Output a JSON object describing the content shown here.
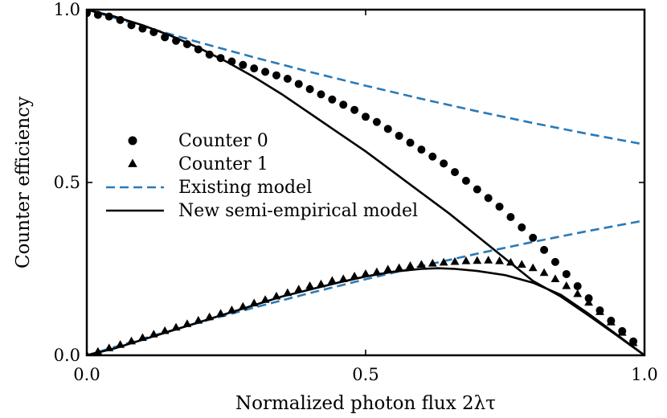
{
  "chart_data": {
    "type": "line",
    "xlabel": "Normalized photon flux 2λτ",
    "ylabel": "Counter efficiency",
    "xlim": [
      0.0,
      1.0
    ],
    "ylim": [
      0.0,
      1.0
    ],
    "xticks": [
      0.0,
      0.5,
      1.0
    ],
    "xtick_labels": [
      "0.0",
      "0.5",
      "1.0"
    ],
    "yticks": [
      0.0,
      0.5,
      1.0
    ],
    "ytick_labels": [
      "0.0",
      "0.5",
      "1.0"
    ],
    "grid": false,
    "legend_position": "center-left",
    "series": [
      {
        "name": "Counter 0",
        "kind": "scatter",
        "marker": "circle",
        "color": "#000000",
        "x": [
          0.0,
          0.02,
          0.04,
          0.06,
          0.08,
          0.1,
          0.12,
          0.14,
          0.16,
          0.18,
          0.2,
          0.22,
          0.24,
          0.26,
          0.28,
          0.3,
          0.32,
          0.34,
          0.36,
          0.38,
          0.4,
          0.42,
          0.44,
          0.46,
          0.48,
          0.5,
          0.52,
          0.54,
          0.56,
          0.58,
          0.6,
          0.62,
          0.64,
          0.66,
          0.68,
          0.7,
          0.72,
          0.74,
          0.76,
          0.78,
          0.8,
          0.82,
          0.84,
          0.86,
          0.88,
          0.9,
          0.92,
          0.94,
          0.96,
          0.98
        ],
        "y": [
          0.99,
          0.985,
          0.98,
          0.97,
          0.955,
          0.945,
          0.935,
          0.92,
          0.91,
          0.9,
          0.885,
          0.87,
          0.86,
          0.85,
          0.84,
          0.83,
          0.82,
          0.81,
          0.8,
          0.785,
          0.77,
          0.755,
          0.74,
          0.725,
          0.71,
          0.69,
          0.675,
          0.655,
          0.635,
          0.615,
          0.595,
          0.575,
          0.555,
          0.53,
          0.505,
          0.48,
          0.455,
          0.43,
          0.4,
          0.37,
          0.34,
          0.305,
          0.27,
          0.235,
          0.2,
          0.165,
          0.13,
          0.1,
          0.07,
          0.04
        ]
      },
      {
        "name": "Counter 1",
        "kind": "scatter",
        "marker": "triangle",
        "color": "#000000",
        "x": [
          0.0,
          0.02,
          0.04,
          0.06,
          0.08,
          0.1,
          0.12,
          0.14,
          0.16,
          0.18,
          0.2,
          0.22,
          0.24,
          0.26,
          0.28,
          0.3,
          0.32,
          0.34,
          0.36,
          0.38,
          0.4,
          0.42,
          0.44,
          0.46,
          0.48,
          0.5,
          0.52,
          0.54,
          0.56,
          0.58,
          0.6,
          0.62,
          0.64,
          0.66,
          0.68,
          0.7,
          0.72,
          0.74,
          0.76,
          0.78,
          0.8,
          0.82,
          0.84,
          0.86,
          0.88,
          0.9,
          0.92,
          0.94,
          0.96,
          0.98
        ],
        "y": [
          0.0,
          0.01,
          0.02,
          0.03,
          0.04,
          0.05,
          0.06,
          0.07,
          0.08,
          0.09,
          0.1,
          0.11,
          0.12,
          0.13,
          0.14,
          0.15,
          0.16,
          0.17,
          0.18,
          0.19,
          0.2,
          0.205,
          0.215,
          0.22,
          0.228,
          0.235,
          0.24,
          0.248,
          0.252,
          0.258,
          0.262,
          0.265,
          0.268,
          0.27,
          0.272,
          0.273,
          0.274,
          0.272,
          0.268,
          0.262,
          0.252,
          0.238,
          0.22,
          0.2,
          0.177,
          0.152,
          0.125,
          0.095,
          0.065,
          0.035
        ]
      },
      {
        "name": "Existing model",
        "kind": "line",
        "style": "dashed",
        "color": "#2a7ab8",
        "x": [
          0.0,
          0.1,
          0.2,
          0.3,
          0.4,
          0.5,
          0.6,
          0.7,
          0.8,
          0.9,
          1.0
        ],
        "y": [
          1.0,
          0.952,
          0.906,
          0.862,
          0.82,
          0.78,
          0.742,
          0.706,
          0.672,
          0.64,
          0.61
        ]
      },
      {
        "name": "",
        "kind": "line",
        "style": "dashed",
        "color": "#2a7ab8",
        "x": [
          0.0,
          0.1,
          0.2,
          0.3,
          0.4,
          0.5,
          0.6,
          0.7,
          0.8,
          0.9,
          1.0
        ],
        "y": [
          0.0,
          0.048,
          0.094,
          0.138,
          0.18,
          0.22,
          0.258,
          0.294,
          0.328,
          0.36,
          0.39
        ]
      },
      {
        "name": "New semi-empirical model",
        "kind": "line",
        "style": "solid",
        "color": "#000000",
        "x": [
          0.0,
          0.05,
          0.1,
          0.15,
          0.2,
          0.25,
          0.3,
          0.35,
          0.4,
          0.45,
          0.5,
          0.55,
          0.6,
          0.65,
          0.7,
          0.75,
          0.8,
          0.85,
          0.9,
          0.95,
          1.0
        ],
        "y": [
          1.0,
          0.98,
          0.955,
          0.925,
          0.89,
          0.85,
          0.805,
          0.755,
          0.7,
          0.645,
          0.59,
          0.53,
          0.47,
          0.41,
          0.345,
          0.28,
          0.215,
          0.17,
          0.115,
          0.058,
          0.0
        ]
      },
      {
        "name": "",
        "kind": "line",
        "style": "solid",
        "color": "#000000",
        "x": [
          0.0,
          0.05,
          0.1,
          0.15,
          0.2,
          0.25,
          0.3,
          0.35,
          0.4,
          0.45,
          0.5,
          0.55,
          0.6,
          0.63,
          0.66,
          0.7,
          0.75,
          0.8,
          0.85,
          0.9,
          0.95,
          1.0
        ],
        "y": [
          0.0,
          0.02,
          0.045,
          0.07,
          0.095,
          0.12,
          0.145,
          0.17,
          0.19,
          0.21,
          0.228,
          0.242,
          0.25,
          0.252,
          0.25,
          0.244,
          0.232,
          0.21,
          0.175,
          0.12,
          0.06,
          0.0
        ]
      }
    ]
  }
}
